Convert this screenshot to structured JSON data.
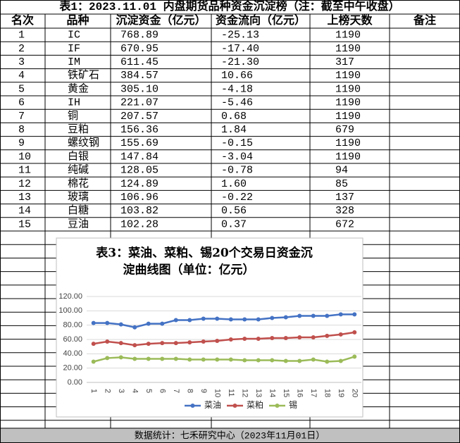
{
  "table": {
    "title": "表1：2023.11.01 内盘期货品种资金沉淀榜（注：截至中午收盘）",
    "header": [
      "名次",
      "品种",
      "沉淀资金（亿元）",
      "资金流向（亿元）",
      "上榜天数",
      "备注"
    ],
    "rows": [
      [
        "1",
        "IC",
        "768.89",
        "-25.13",
        "1190"
      ],
      [
        "2",
        "IF",
        "670.95",
        "-17.40",
        "1190"
      ],
      [
        "3",
        "IM",
        "611.45",
        "-21.30",
        "317"
      ],
      [
        "4",
        "铁矿石",
        "384.57",
        "10.66",
        "1190"
      ],
      [
        "5",
        "黄金",
        "305.10",
        "-4.18",
        "1190"
      ],
      [
        "6",
        "IH",
        "221.07",
        "-5.46",
        "1190"
      ],
      [
        "7",
        "铜",
        "207.57",
        "0.68",
        "1190"
      ],
      [
        "8",
        "豆粕",
        "156.36",
        "1.84",
        "679"
      ],
      [
        "9",
        "螺纹钢",
        "155.69",
        "-0.15",
        "1190"
      ],
      [
        "10",
        "白银",
        "147.84",
        "-3.04",
        "1190"
      ],
      [
        "11",
        "纯碱",
        "128.05",
        "-0.78",
        "94"
      ],
      [
        "12",
        "棉花",
        "124.89",
        "1.60",
        "85"
      ],
      [
        "13",
        "玻璃",
        "106.96",
        "-0.22",
        "137"
      ],
      [
        "14",
        "白糖",
        "103.82",
        "0.56",
        "328"
      ],
      [
        "15",
        "豆油",
        "102.28",
        "0.37",
        "672"
      ]
    ],
    "footer": "数据统计：七禾研究中心（2023年11月01日）"
  },
  "chart_data": {
    "type": "line",
    "title": [
      "表3：菜油、菜粕、锡20个交易日资金沉",
      "淀曲线图（单位：亿元）"
    ],
    "categories": [
      "1",
      "2",
      "3",
      "4",
      "5",
      "6",
      "7",
      "8",
      "9",
      "10",
      "11",
      "12",
      "13",
      "14",
      "15",
      "16",
      "17",
      "18",
      "19",
      "20"
    ],
    "series": [
      {
        "name": "菜油",
        "color": "#4472c4",
        "values": [
          83,
          83,
          81,
          77,
          82,
          82,
          87,
          87,
          89,
          89,
          88,
          88,
          88,
          90,
          91,
          93,
          93,
          93,
          95,
          95
        ]
      },
      {
        "name": "菜粕",
        "color": "#c0504d",
        "values": [
          54,
          57,
          55,
          52,
          54,
          55,
          55,
          56,
          57,
          58,
          60,
          61,
          61,
          62,
          62,
          63,
          63,
          65,
          67,
          70
        ]
      },
      {
        "name": "锡",
        "color": "#9bbb59",
        "values": [
          29,
          34,
          35,
          33,
          33,
          33,
          33,
          32,
          32,
          32,
          32,
          31,
          31,
          31,
          30,
          30,
          32,
          29,
          30,
          36
        ]
      }
    ],
    "ylim": [
      0,
      120
    ],
    "yticks": [
      {
        "value": 0,
        "label": "0.00"
      },
      {
        "value": 20,
        "label": "20.00"
      },
      {
        "value": 40,
        "label": "40.00"
      },
      {
        "value": 60,
        "label": "60.00"
      },
      {
        "value": 80,
        "label": "80.00"
      },
      {
        "value": 100,
        "label": "100.00"
      },
      {
        "value": 120,
        "label": "120.00"
      }
    ],
    "grid": true,
    "legend": "bottom"
  }
}
